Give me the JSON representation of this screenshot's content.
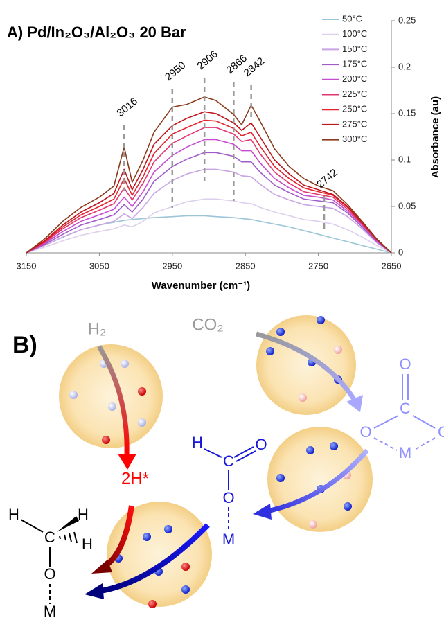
{
  "chart_data": {
    "type": "line",
    "title": "A) Pd/In₂O₃/Al₂O₃ 20 Bar",
    "x_label": "Wavenumber (cm⁻¹)",
    "y_label": "Absorbance (au)",
    "xlim": [
      3150,
      2650
    ],
    "xticks": [
      3150,
      3050,
      2950,
      2850,
      2750,
      2650
    ],
    "ylim": [
      0,
      0.25
    ],
    "yticks": [
      0,
      0.05,
      0.1,
      0.15,
      0.2,
      0.25
    ],
    "peaks": [
      3016,
      2950,
      2906,
      2866,
      2842,
      2742
    ],
    "x": [
      3150,
      3125,
      3100,
      3075,
      3050,
      3030,
      3016,
      3005,
      2990,
      2975,
      2950,
      2930,
      2906,
      2890,
      2866,
      2855,
      2842,
      2830,
      2810,
      2790,
      2770,
      2750,
      2730,
      2710,
      2690,
      2670,
      2650
    ],
    "series": [
      {
        "name": "50°C",
        "color": "#9cc5d8",
        "values": [
          0,
          0.008,
          0.017,
          0.025,
          0.03,
          0.033,
          0.035,
          0.036,
          0.037,
          0.038,
          0.039,
          0.04,
          0.04,
          0.039,
          0.038,
          0.037,
          0.036,
          0.034,
          0.031,
          0.028,
          0.024,
          0.02,
          0.016,
          0.012,
          0.008,
          0.004,
          0
        ]
      },
      {
        "name": "100°C",
        "color": "#ddd0ec",
        "values": [
          0,
          0.006,
          0.013,
          0.019,
          0.023,
          0.026,
          0.03,
          0.028,
          0.034,
          0.043,
          0.05,
          0.055,
          0.058,
          0.058,
          0.056,
          0.054,
          0.053,
          0.049,
          0.044,
          0.04,
          0.036,
          0.034,
          0.031,
          0.025,
          0.017,
          0.008,
          0
        ]
      },
      {
        "name": "150°C",
        "color": "#c8a4e4",
        "values": [
          0,
          0.008,
          0.017,
          0.025,
          0.03,
          0.034,
          0.042,
          0.037,
          0.049,
          0.064,
          0.078,
          0.085,
          0.09,
          0.09,
          0.087,
          0.083,
          0.082,
          0.074,
          0.063,
          0.057,
          0.052,
          0.05,
          0.048,
          0.039,
          0.026,
          0.011,
          0
        ]
      },
      {
        "name": "175°C",
        "color": "#a15ccb",
        "values": [
          0,
          0.009,
          0.02,
          0.03,
          0.036,
          0.041,
          0.052,
          0.044,
          0.058,
          0.077,
          0.093,
          0.101,
          0.108,
          0.108,
          0.104,
          0.098,
          0.098,
          0.087,
          0.073,
          0.065,
          0.058,
          0.056,
          0.054,
          0.043,
          0.028,
          0.012,
          0
        ]
      },
      {
        "name": "200°C",
        "color": "#c64cd2",
        "values": [
          0,
          0.01,
          0.023,
          0.034,
          0.041,
          0.047,
          0.06,
          0.05,
          0.066,
          0.087,
          0.105,
          0.114,
          0.122,
          0.122,
          0.117,
          0.11,
          0.11,
          0.097,
          0.08,
          0.07,
          0.062,
          0.06,
          0.057,
          0.045,
          0.03,
          0.013,
          0
        ]
      },
      {
        "name": "225°C",
        "color": "#e23670",
        "values": [
          0,
          0.011,
          0.026,
          0.038,
          0.046,
          0.053,
          0.07,
          0.057,
          0.075,
          0.098,
          0.118,
          0.126,
          0.135,
          0.135,
          0.128,
          0.12,
          0.122,
          0.107,
          0.087,
          0.075,
          0.066,
          0.063,
          0.06,
          0.047,
          0.031,
          0.014,
          0
        ]
      },
      {
        "name": "250°C",
        "color": "#e3222b",
        "values": [
          0,
          0.012,
          0.028,
          0.041,
          0.05,
          0.058,
          0.08,
          0.062,
          0.082,
          0.107,
          0.128,
          0.135,
          0.143,
          0.142,
          0.134,
          0.126,
          0.13,
          0.115,
          0.093,
          0.08,
          0.07,
          0.066,
          0.062,
          0.049,
          0.032,
          0.014,
          0
        ]
      },
      {
        "name": "275°C",
        "color": "#be141d",
        "values": [
          0,
          0.013,
          0.03,
          0.044,
          0.054,
          0.064,
          0.09,
          0.068,
          0.09,
          0.117,
          0.137,
          0.145,
          0.152,
          0.15,
          0.14,
          0.132,
          0.14,
          0.125,
          0.1,
          0.085,
          0.073,
          0.068,
          0.063,
          0.05,
          0.033,
          0.015,
          0
        ]
      },
      {
        "name": "300°C",
        "color": "#8a3b1b",
        "values": [
          0,
          0.015,
          0.034,
          0.049,
          0.06,
          0.072,
          0.114,
          0.076,
          0.1,
          0.13,
          0.157,
          0.16,
          0.168,
          0.164,
          0.149,
          0.138,
          0.159,
          0.142,
          0.112,
          0.093,
          0.08,
          0.072,
          0.067,
          0.052,
          0.034,
          0.015,
          0
        ]
      }
    ]
  },
  "diagram": {
    "label": "B)",
    "h2": "H₂",
    "co2": "CO₂",
    "hydrogen": "2H*",
    "carbonate": [
      "O",
      "C",
      "O",
      "C",
      "M"
    ],
    "formate": [
      "H",
      "C",
      "O",
      "O",
      "M"
    ],
    "methoxy": [
      "H",
      "C",
      "H",
      "H",
      "O",
      "M"
    ]
  }
}
